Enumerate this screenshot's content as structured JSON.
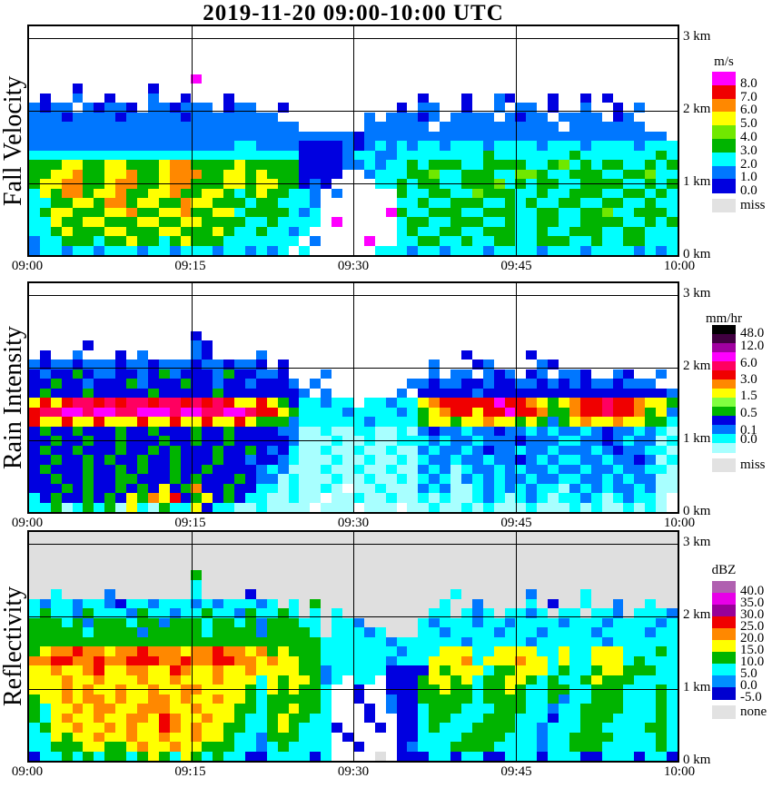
{
  "title": "2019-11-20  09:00-10:00 UTC",
  "x_axis": {
    "labels": [
      "09:00",
      "09:15",
      "09:30",
      "09:45",
      "10:00"
    ]
  },
  "y_axis": {
    "labels": [
      "3 km",
      "2 km",
      "1 km",
      "0 km"
    ]
  },
  "panels": [
    {
      "label": "Fall Velocity",
      "colorbar": {
        "title": "m/s",
        "segments": [
          "#FF00FF",
          "#F00000",
          "#FF8800",
          "#FFFF00",
          "#70E800",
          "#00B400",
          "#00FFFF",
          "#0077FF",
          "#0000E0"
        ],
        "labels": [
          {
            "text": "8.0",
            "at": 1
          },
          {
            "text": "7.0",
            "at": 2
          },
          {
            "text": "6.0",
            "at": 3
          },
          {
            "text": "5.0",
            "at": 4
          },
          {
            "text": "4.0",
            "at": 5
          },
          {
            "text": "3.0",
            "at": 6
          },
          {
            "text": "2.0",
            "at": 7
          },
          {
            "text": "1.0",
            "at": 8
          },
          {
            "text": "0.0",
            "at": 9
          }
        ],
        "extra": {
          "label": "miss",
          "color": "#E2E2E2"
        }
      }
    },
    {
      "label": "Rain Intensity",
      "colorbar": {
        "title": "mm/hr",
        "segments": [
          "#000000",
          "#400040",
          "#A000A0",
          "#FF00FF",
          "#FF0060",
          "#F00000",
          "#FF8800",
          "#FFFF00",
          "#80FF40",
          "#00B400",
          "#0000E0",
          "#0077FF",
          "#00FFFF",
          "#A8FFFF"
        ],
        "labels": [
          {
            "text": "48.0",
            "at": 1.1
          },
          {
            "text": "12.0",
            "at": 2.5
          },
          {
            "text": "6.0",
            "at": 4.4
          },
          {
            "text": "3.0",
            "at": 6.2
          },
          {
            "text": "1.5",
            "at": 8.0
          },
          {
            "text": "0.5",
            "at": 9.9
          },
          {
            "text": "0.1",
            "at": 11.8
          },
          {
            "text": "0.0",
            "at": 12.8
          }
        ],
        "extra": {
          "label": "miss",
          "color": "#E2E2E2"
        }
      }
    },
    {
      "label": "Reflectivity",
      "colorbar": {
        "title": "dBZ",
        "segments": [
          "#B060B0",
          "#E800E8",
          "#980098",
          "#F00000",
          "#FF8800",
          "#FFFF00",
          "#00B400",
          "#00FFFF",
          "#0090FF",
          "#0000D0"
        ],
        "labels": [
          {
            "text": "40.0",
            "at": 1
          },
          {
            "text": "35.0",
            "at": 2
          },
          {
            "text": "30.0",
            "at": 3
          },
          {
            "text": "25.0",
            "at": 4
          },
          {
            "text": "20.0",
            "at": 5
          },
          {
            "text": "15.0",
            "at": 6
          },
          {
            "text": "10.0",
            "at": 7
          },
          {
            "text": "5.0",
            "at": 8
          },
          {
            "text": "0.0",
            "at": 9
          },
          {
            "text": "-5.0",
            "at": 10
          }
        ],
        "extra": {
          "label": "none",
          "color": "#E2E2E2"
        }
      }
    }
  ],
  "palette": {
    "w": "#FFFFFF",
    "t": "#A8FFFF",
    "n": "#00FFFF",
    "b": "#0077FF",
    "d": "#0000E0",
    "g": "#00B400",
    "c": "#70E800",
    "y": "#FFFF00",
    "o": "#FF8800",
    "r": "#F00000",
    "i": "#FF0060",
    "m": "#FF00FF",
    "p": "#A000A0",
    "k": "#000000",
    "e": "#DFDFDF"
  },
  "chart_data": [
    {
      "type": "heatmap",
      "title": "Fall Velocity",
      "units": "m/s",
      "x_range": [
        "09:00",
        "10:00"
      ],
      "y_range_km": [
        0,
        3.2
      ],
      "legend_values": [
        8.0,
        7.0,
        6.0,
        5.0,
        4.0,
        3.0,
        2.0,
        1.0,
        0.0
      ],
      "background": "#FFFFFF",
      "cols": 60,
      "rows": [
        "............................................................",
        "............................................................",
        "............................................................",
        "............................................................",
        "............................................................",
        "...............m............................................",
        "....d......d................................................",
        ".d..b..d...b..d...d.................d...d..bd...d..d.d......",
        "bdbb.bdbbd.bbdbbb.dbb..d..........d.bb..d..b.bb.d..b..d.b...",
        "bbbdbbbbdbbbbbdbbbbbbbb........b.bbbdb.bbbb.bdbb.bbbb.db....",
        "bbbbbbbbbbbbbbbbbbbbbbbbb......bbbbbb.bbbbbbbbbbb.bbbbbbb...",
        "bbbbbbbbbbbbbbbbbbbbbbbbbbbbbbdbbbbbbbbbbbbbbbbbbbbbbbbbbbb",
        "bbbbbbbbbbbbbbbbbbbnnbbbbddddbdbnbnbnnbnnnbnnnnbnnnbnnnnbnnn",
        "nnnnnnnnnnnnnnnnnnnnnnnnnddddbnnbbnnnnnnnngnnnnnnngnnnnnnngn",
        "gggyyggyygggyooggggygggggddddbbnbnngngggnnggggnngcngnggnngng",
        "ggyyoggyyoggyoooggyygygggdddd..bnnnggcnngggnnccgnngggnnggcnn",
        "gyyooggyooggyoogggyygyyggdbd....nngnggnngggcngnggnnggggnngng",
        "nygoogyyoggyyoggyygngyggnnb.b.....gnnggnncgggnngnngggnnggngn",
        "nnggyygoogyyggoyygggnggnnnb.......nngnngggnngngnnggnnggnngnn",
        "ngyygggyyoggyyoggyynggggnbn......mgnngggnngggnnggnnggcnngggn",
        "nnyggyygggyyggyyggggnngnnnn.m.....nggnngggnngnnggnnggggnngng",
        "nngygggyygggyygggygnngnnbn........ngnnggnngggnngnngggnnggnnn",
        "bnngggnggyggngygggnnnnnnn.b....m..nnggnngnnggnngggnngnnggnnn",
        "bnnbnnbnnnbnnbnnnbnnbnbn.n......nnnbnnbnnnbnnnnbnnnbnnnnbnbn"
      ]
    },
    {
      "type": "heatmap",
      "title": "Rain Intensity",
      "units": "mm/hr",
      "x_range": [
        "09:00",
        "10:00"
      ],
      "y_range_km": [
        0,
        3.2
      ],
      "legend_values": [
        48.0,
        12.0,
        6.0,
        3.0,
        1.5,
        0.5,
        0.1,
        0.0
      ],
      "background": "#FFFFFF",
      "cols": 60,
      "rows": [
        "............................................................",
        "............................................................",
        "............................................................",
        "............................................................",
        "............................................................",
        "...............d............................................",
        ".....d.........bd...........................................",
        ".d..b...d.b....bd....b..................d.....d.............",
        "bdbbdbbbdbbdbbbdbbdbbd.d.............b...db....bd...........",
        "dbddgdbbddbdgbdddbgddbbd...b.........b.bb.bdb.db.bbd..bd..b.",
        "ddgddbdddgbdddgddbddbdddb.b........bbdbbddbddbbdbdbdbbdbbb..",
        "dgdddgdddddgdddddgdddddddb.b......b.dddddbdddddddddddddddddb",
        "yryriiririiriiririryyrygdnnbnn.nnbnnyorrrrrmrroygyorrirroyyg",
        "riimmimmiimmmimmiimmirrygnnnnbnnnnbngyorryrrmrroggorrirrogyb",
        "ryyryyryyyryyryyryyrygggbnnnnnnbnnnngyygyyoyygygbgyoyyoyyggn",
        "dgddgdddgddgdddgddgddddbbttnttnnttntbdbbnbbdbbnbnbbnbdbbnbnt",
        "ddgddgddgdddgddgddgdddddbtttnttnttnnnbnbbnbbbdbbbnnbbdbnbbtn",
        "dgddgdddgddgdgdddgddgdbdnttnttnttnttbnbbnbdbbnbbnbbbnbdbbnnt",
        "ddgddgdgddgddgdddgddbddbntttnttnttntnbbnbbnbbdbnbnnbbnbbdbtn",
        "dgdddgddgdgddgddgddddbnbtttnttnttnttbnbtnbbnbnbbnbbnbbnbbnnt",
        "ddgddgddggdddgdgdddgdbbtntttnttnttntnbntbnbnbbnbbnnbbnbnbbtt",
        "dddgdgddgdgdydgoddgddnntnttnt.ttntttbnbttnbnbnbnntbnbnbbnbtt",
        "ndgddgdgdygoyrdgydgdnnttntt.ttnttnttntnttnbntnbntnnbntnbnnt.",
        "nngtngngtyntgnnydnnttntttt.ttt.ttt.ttnttntntttntttntnttntnt."
      ]
    },
    {
      "type": "heatmap",
      "title": "Reflectivity",
      "units": "dBZ",
      "x_range": [
        "09:00",
        "10:00"
      ],
      "y_range_km": [
        0,
        3.2
      ],
      "legend_values": [
        40.0,
        35.0,
        30.0,
        25.0,
        20.0,
        15.0,
        10.0,
        5.0,
        0.0,
        -5.0
      ],
      "background": "#DFDFDF",
      "cols": 60,
      "rows": [
        "............................................................",
        "............................................................",
        "............................................................",
        "............................................................",
        "...............g............................................",
        "...............n............................................",
        "..n....b.......n....d..................n......b....n........",
        "nbnnbnnbdnnbnnnbnbnnnbn.n.g...........n..b....n.d..n..b..n..",
        "ngnnbgnnnbgnnbnngnnbgnngn.n.n........nn.nbn.nnbn.nn.nnb.nnnb",
        "gggngbgggnggbgggnggngbgggnn.nnb.....nbnnnbnnbnnnnbnnnbnnnnbn",
        "gggggnggggbgggggnggggbggggn.nnnbn...nnbnnnnbnnnbnnnnbnnnnbnn",
        "gggggggggggggggggggggggggggnnnnnnbnnnnnnbnnnnnbnnnnnnbnnnnnn",
        "gyoorooyooroooyoorooyogygggnnnnnnnbnnnyyynnyyyynnynnyyynnngn",
        "oorrooroorrrooroorrooyoyyggnnnnnnbnnnyyyonyyyoyynynnyyyngnnn",
        "yyoyyoryyooyyroyyoyyoyyyyggbnnnnnddddygyyynggyyyngnngyygggnn",
        "yyyoyyoyyyoyyoyyyoyyynygyygbnwnnwdddgyygynggyygngnngygggnnnn",
        "yyyoyoyyoyyoyyooyyyygnygyggnwwdwwdddggyggnggygnnggnngggnnngn",
        "gyyoyooyoyyooyoyyoyygngggggnwwdwwbddgggggnggggnngbnngggnnngn",
        "gnyyoyooyyoooyyoyyyggnggyggnwwwdwbddngggnnngggnnbnnggggnnngn",
        "gnyoyyoyyooyroyyoyygnngyggnnwwwdwwddnggnnngggnnndnngggnnnngn",
        "ngyyoyyoyoyyroyoyyggnngygnnndwwwdwddngnnnggggnnbnnnggnnnnggn",
        "nnygyyoyyoyyoyyoyygnnbgggnnnwdwwwwddnnnnggggnnnbnnggggnnnngn",
        "nngggyyggyoyyoyygggnnbngnnnnwwdwwwdbnnnggggnnnnbnngggnnnnngn",
        "dnngngnggngygnygngnnddnnnndnwwww.wdddnndnnddnnndnnnddnnndnnd"
      ]
    }
  ]
}
